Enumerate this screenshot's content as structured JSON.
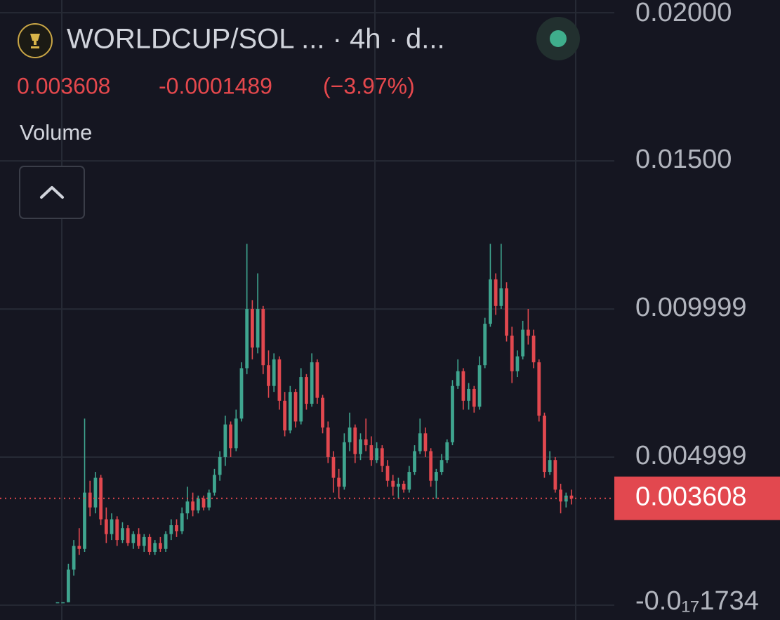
{
  "chart_data": {
    "type": "candlestick",
    "title": "WORLDCUP/SOL ... · 4h · d...",
    "last_price": 0.003608,
    "change": -0.0001489,
    "change_percent": {
      "value": -3.97,
      "label": "(−3.97%)"
    },
    "indicator": "Volume",
    "up_color": "#3fa58f",
    "down_color": "#e2484f",
    "grid": true,
    "ylim": [
      -0.0005,
      0.02043
    ],
    "yticks": [
      {
        "value": -1.734e-19,
        "label": "-0.0₁₇1734"
      },
      0.004999,
      0.009999,
      {
        "value": 0.015,
        "label": "0.01500"
      },
      {
        "value": 0.02,
        "label": "0.02000"
      }
    ],
    "ohlc": [
      [
        0.0001,
        0.0001,
        0.0001,
        0.0001
      ],
      [
        0.0001,
        0.0001,
        0.0001,
        0.0001
      ],
      [
        0.0001,
        0.0014,
        0.0001,
        0.0012
      ],
      [
        0.0012,
        0.0022,
        0.001,
        0.002
      ],
      [
        0.002,
        0.0026,
        0.0017,
        0.0019
      ],
      [
        0.0019,
        0.0063,
        0.0018,
        0.0038
      ],
      [
        0.0038,
        0.0042,
        0.003,
        0.0033
      ],
      [
        0.0033,
        0.0045,
        0.0031,
        0.0043
      ],
      [
        0.0043,
        0.0044,
        0.0027,
        0.0029
      ],
      [
        0.0029,
        0.0033,
        0.0021,
        0.0024
      ],
      [
        0.0024,
        0.0031,
        0.0022,
        0.0029
      ],
      [
        0.0029,
        0.003,
        0.002,
        0.0022
      ],
      [
        0.0022,
        0.0028,
        0.0021,
        0.0026
      ],
      [
        0.0026,
        0.0027,
        0.002,
        0.0021
      ],
      [
        0.0021,
        0.0025,
        0.0019,
        0.0024
      ],
      [
        0.0024,
        0.0026,
        0.0019,
        0.002
      ],
      [
        0.002,
        0.0024,
        0.0018,
        0.0023
      ],
      [
        0.0023,
        0.0024,
        0.0017,
        0.0018
      ],
      [
        0.0018,
        0.0022,
        0.0017,
        0.0021
      ],
      [
        0.0021,
        0.0023,
        0.0018,
        0.0019
      ],
      [
        0.0019,
        0.0025,
        0.0018,
        0.0024
      ],
      [
        0.0024,
        0.0029,
        0.0022,
        0.0027
      ],
      [
        0.0027,
        0.0029,
        0.0023,
        0.0025
      ],
      [
        0.0025,
        0.0033,
        0.0024,
        0.0031
      ],
      [
        0.0031,
        0.004,
        0.0029,
        0.0035
      ],
      [
        0.0035,
        0.0038,
        0.003,
        0.0032
      ],
      [
        0.0032,
        0.0037,
        0.0031,
        0.0036
      ],
      [
        0.0036,
        0.0037,
        0.0032,
        0.0033
      ],
      [
        0.0033,
        0.0039,
        0.0032,
        0.0038
      ],
      [
        0.0038,
        0.0046,
        0.0037,
        0.0044
      ],
      [
        0.0044,
        0.0052,
        0.0042,
        0.005
      ],
      [
        0.005,
        0.0064,
        0.0047,
        0.0061
      ],
      [
        0.0061,
        0.0062,
        0.005,
        0.0053
      ],
      [
        0.0053,
        0.0066,
        0.0052,
        0.0063
      ],
      [
        0.0063,
        0.0082,
        0.0062,
        0.008
      ],
      [
        0.008,
        0.0122,
        0.0078,
        0.01
      ],
      [
        0.01,
        0.0103,
        0.0083,
        0.0087
      ],
      [
        0.0087,
        0.0112,
        0.0085,
        0.01
      ],
      [
        0.01,
        0.0101,
        0.0078,
        0.0081
      ],
      [
        0.0081,
        0.0086,
        0.007,
        0.0074
      ],
      [
        0.0074,
        0.0085,
        0.0072,
        0.0083
      ],
      [
        0.0083,
        0.0084,
        0.0066,
        0.0069
      ],
      [
        0.0069,
        0.0072,
        0.0057,
        0.0059
      ],
      [
        0.0059,
        0.0074,
        0.0058,
        0.0072
      ],
      [
        0.0072,
        0.0073,
        0.006,
        0.0062
      ],
      [
        0.0062,
        0.008,
        0.0061,
        0.0077
      ],
      [
        0.0077,
        0.0078,
        0.0066,
        0.0068
      ],
      [
        0.0068,
        0.0085,
        0.0067,
        0.0082
      ],
      [
        0.0082,
        0.0083,
        0.0068,
        0.007
      ],
      [
        0.007,
        0.0071,
        0.0058,
        0.006
      ],
      [
        0.006,
        0.0062,
        0.0048,
        0.005
      ],
      [
        0.005,
        0.0052,
        0.0038,
        0.0043
      ],
      [
        0.0043,
        0.0046,
        0.0036,
        0.004
      ],
      [
        0.004,
        0.0058,
        0.0039,
        0.0055
      ],
      [
        0.0055,
        0.0065,
        0.0052,
        0.006
      ],
      [
        0.006,
        0.0061,
        0.0048,
        0.0051
      ],
      [
        0.0051,
        0.0058,
        0.0049,
        0.0056
      ],
      [
        0.0056,
        0.0063,
        0.0052,
        0.0054
      ],
      [
        0.0054,
        0.0057,
        0.0047,
        0.0049
      ],
      [
        0.0049,
        0.0055,
        0.0048,
        0.0053
      ],
      [
        0.0053,
        0.0054,
        0.0045,
        0.0047
      ],
      [
        0.0047,
        0.0049,
        0.004,
        0.0042
      ],
      [
        0.0042,
        0.0044,
        0.0037,
        0.004
      ],
      [
        0.004,
        0.0043,
        0.0036,
        0.0041
      ],
      [
        0.0041,
        0.0042,
        0.0038,
        0.0039
      ],
      [
        0.0039,
        0.0047,
        0.0038,
        0.0045
      ],
      [
        0.0045,
        0.0054,
        0.0044,
        0.0052
      ],
      [
        0.0052,
        0.0063,
        0.0051,
        0.0058
      ],
      [
        0.0058,
        0.006,
        0.005,
        0.0052
      ],
      [
        0.0052,
        0.0053,
        0.004,
        0.0042
      ],
      [
        0.0042,
        0.0046,
        0.0036,
        0.0045
      ],
      [
        0.0045,
        0.0051,
        0.0044,
        0.0049
      ],
      [
        0.0049,
        0.0056,
        0.0048,
        0.0055
      ],
      [
        0.0055,
        0.0076,
        0.0054,
        0.0074
      ],
      [
        0.0074,
        0.0083,
        0.0073,
        0.0079
      ],
      [
        0.0079,
        0.008,
        0.0066,
        0.0069
      ],
      [
        0.0069,
        0.0075,
        0.0066,
        0.0073
      ],
      [
        0.0073,
        0.0074,
        0.0065,
        0.0067
      ],
      [
        0.0067,
        0.0084,
        0.0066,
        0.0081
      ],
      [
        0.0081,
        0.0097,
        0.008,
        0.0095
      ],
      [
        0.0095,
        0.0122,
        0.0094,
        0.011
      ],
      [
        0.011,
        0.0112,
        0.0098,
        0.0101
      ],
      [
        0.0101,
        0.0122,
        0.01,
        0.0107
      ],
      [
        0.0107,
        0.0109,
        0.0089,
        0.0091
      ],
      [
        0.0091,
        0.0094,
        0.0075,
        0.0079
      ],
      [
        0.0079,
        0.0086,
        0.0077,
        0.0084
      ],
      [
        0.0084,
        0.0096,
        0.0083,
        0.0093
      ],
      [
        0.0093,
        0.01,
        0.0088,
        0.0091
      ],
      [
        0.0091,
        0.0093,
        0.008,
        0.0082
      ],
      [
        0.0082,
        0.0083,
        0.0062,
        0.0064
      ],
      [
        0.0064,
        0.0065,
        0.0043,
        0.0045
      ],
      [
        0.0045,
        0.0052,
        0.0044,
        0.0049
      ],
      [
        0.0049,
        0.005,
        0.0038,
        0.0039
      ],
      [
        0.0039,
        0.0041,
        0.0031,
        0.0035
      ],
      [
        0.0035,
        0.0038,
        0.0033,
        0.0037
      ],
      [
        0.0037,
        0.0039,
        0.0034,
        0.0036
      ]
    ]
  }
}
